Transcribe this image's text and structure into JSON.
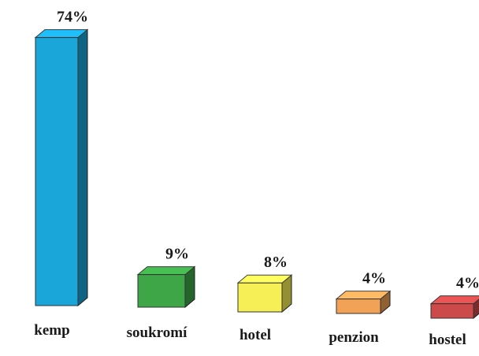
{
  "chart_data": {
    "type": "bar3d",
    "categories": [
      "kemp",
      "soukromí",
      "hotel",
      "penzion",
      "hostel"
    ],
    "values": [
      74,
      9,
      8,
      4,
      4
    ],
    "value_labels": [
      "74%",
      "9%",
      "8%",
      "4%",
      "4%"
    ],
    "colors": [
      "#1ba6da",
      "#3ea647",
      "#f6ef55",
      "#f2a257",
      "#cc4a4a"
    ]
  }
}
